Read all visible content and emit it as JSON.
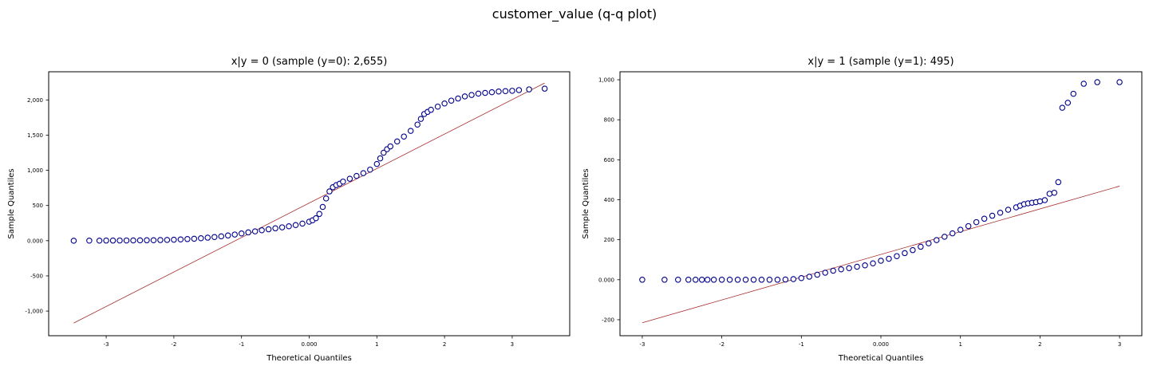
{
  "suptitle": "customer_value (q-q plot)",
  "colors": {
    "marker_edge": "#00008b",
    "ref_line": "#a52a2a",
    "axes": "#000000"
  },
  "chart_data": [
    {
      "type": "scatter",
      "title": "x|y = 0 (sample (y=0): 2,655)",
      "xlabel": "Theoretical Quantiles",
      "ylabel": "Sample Quantiles",
      "xlim": [
        -3.85,
        3.85
      ],
      "ylim": [
        -1350,
        2400
      ],
      "xticks": [
        -3,
        -2,
        -1,
        0,
        1,
        2,
        3
      ],
      "xtick_labels": [
        "-3",
        "-2",
        "-1",
        "0.000",
        "1",
        "2",
        "3"
      ],
      "yticks": [
        -1000,
        -500,
        0,
        500,
        1000,
        1500,
        2000
      ],
      "ytick_labels": [
        "-1,000",
        "-500",
        "0.000",
        "500",
        "1,000",
        "1,500",
        "2,000"
      ],
      "grid": false,
      "reference_line": {
        "x": [
          -3.48,
          3.48
        ],
        "y": [
          -1170,
          2240
        ]
      },
      "points": {
        "x": [
          -3.48,
          -3.25,
          -3.1,
          -3.0,
          -2.9,
          -2.8,
          -2.7,
          -2.6,
          -2.5,
          -2.4,
          -2.3,
          -2.2,
          -2.1,
          -2.0,
          -1.9,
          -1.8,
          -1.7,
          -1.6,
          -1.5,
          -1.4,
          -1.3,
          -1.2,
          -1.1,
          -1.0,
          -0.9,
          -0.8,
          -0.7,
          -0.6,
          -0.5,
          -0.4,
          -0.3,
          -0.2,
          -0.1,
          0.0,
          0.05,
          0.1,
          0.15,
          0.2,
          0.25,
          0.3,
          0.35,
          0.4,
          0.45,
          0.5,
          0.6,
          0.7,
          0.8,
          0.9,
          1.0,
          1.05,
          1.1,
          1.15,
          1.2,
          1.3,
          1.4,
          1.5,
          1.6,
          1.65,
          1.7,
          1.75,
          1.8,
          1.9,
          2.0,
          2.1,
          2.2,
          2.3,
          2.4,
          2.5,
          2.6,
          2.7,
          2.8,
          2.9,
          3.0,
          3.1,
          3.25,
          3.48
        ],
        "y": [
          0,
          1,
          1,
          2,
          2,
          3,
          3,
          4,
          5,
          6,
          7,
          9,
          11,
          14,
          18,
          23,
          28,
          35,
          43,
          52,
          62,
          74,
          88,
          103,
          118,
          133,
          148,
          162,
          176,
          190,
          205,
          222,
          243,
          270,
          290,
          320,
          380,
          480,
          600,
          700,
          760,
          790,
          810,
          840,
          880,
          920,
          960,
          1010,
          1090,
          1170,
          1250,
          1300,
          1340,
          1410,
          1480,
          1560,
          1650,
          1730,
          1800,
          1830,
          1860,
          1905,
          1950,
          1990,
          2020,
          2050,
          2070,
          2090,
          2100,
          2110,
          2120,
          2125,
          2130,
          2140,
          2150,
          2160
        ]
      }
    },
    {
      "type": "scatter",
      "title": "x|y = 1 (sample (y=1): 495)",
      "xlabel": "Theoretical Quantiles",
      "ylabel": "Sample Quantiles",
      "xlim": [
        -3.28,
        3.28
      ],
      "ylim": [
        -280,
        1040
      ],
      "xticks": [
        -3,
        -2,
        -1,
        0,
        1,
        2,
        3
      ],
      "xtick_labels": [
        "-3",
        "-2",
        "-1",
        "0.000",
        "1",
        "2",
        "3"
      ],
      "yticks": [
        -200,
        0,
        200,
        400,
        600,
        800,
        1000
      ],
      "ytick_labels": [
        "-200",
        "0.000",
        "200",
        "400",
        "600",
        "800",
        "1,000"
      ],
      "grid": false,
      "reference_line": {
        "x": [
          -3.0,
          3.0
        ],
        "y": [
          -215,
          468
        ]
      },
      "points": {
        "x": [
          -3.0,
          -2.72,
          -2.55,
          -2.42,
          -2.33,
          -2.25,
          -2.18,
          -2.1,
          -2.0,
          -1.9,
          -1.8,
          -1.7,
          -1.6,
          -1.5,
          -1.4,
          -1.3,
          -1.2,
          -1.1,
          -1.0,
          -0.9,
          -0.8,
          -0.7,
          -0.6,
          -0.5,
          -0.4,
          -0.3,
          -0.2,
          -0.1,
          0.0,
          0.1,
          0.2,
          0.3,
          0.4,
          0.5,
          0.6,
          0.7,
          0.8,
          0.9,
          1.0,
          1.1,
          1.2,
          1.3,
          1.4,
          1.5,
          1.6,
          1.7,
          1.75,
          1.8,
          1.85,
          1.9,
          1.95,
          2.0,
          2.06,
          2.12,
          2.18,
          2.23,
          2.28,
          2.35,
          2.42,
          2.55,
          2.72,
          3.0
        ],
        "y": [
          0,
          0,
          0,
          0,
          0,
          0,
          0,
          0,
          0,
          0,
          0,
          0,
          0,
          0,
          0,
          0,
          1,
          3,
          8,
          15,
          25,
          35,
          45,
          52,
          58,
          65,
          72,
          82,
          95,
          105,
          118,
          133,
          148,
          165,
          182,
          198,
          215,
          232,
          250,
          268,
          288,
          305,
          320,
          335,
          350,
          362,
          370,
          378,
          382,
          385,
          388,
          392,
          398,
          430,
          435,
          488,
          860,
          885,
          930,
          980,
          988,
          988
        ]
      }
    }
  ]
}
